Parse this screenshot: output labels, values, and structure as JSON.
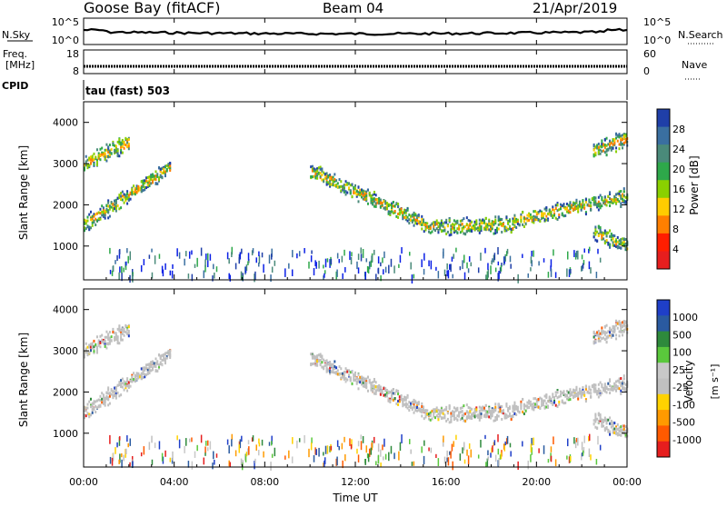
{
  "header": {
    "station": "Goose Bay (fitACF)",
    "beam": "Beam 04",
    "date": "21/Apr/2019"
  },
  "noise_panel": {
    "left_label": "N.Sky",
    "right_label": "N.Search",
    "left_ticks": [
      "10^5",
      "10^0"
    ],
    "right_ticks": [
      "10^5",
      "10^0"
    ]
  },
  "freq_panel": {
    "left_label_line1": "Freq.",
    "left_label_line2": "[MHz]",
    "right_label": "Nave",
    "left_ticks": [
      "18",
      "8"
    ],
    "right_ticks": [
      "60",
      "0"
    ]
  },
  "cpid_panel": {
    "label": "CPID",
    "value": "tau (fast) 503"
  },
  "colors": {
    "power": [
      "#0a1fe6",
      "#1f3fa8",
      "#3a6fa0",
      "#4a8a7a",
      "#2ea84a",
      "#8ad000",
      "#ffcc00",
      "#ff7f00",
      "#ff1e00",
      "#e61e1e"
    ],
    "velocity": [
      "#e61e1e",
      "#ff5a00",
      "#ff9a00",
      "#ffd200",
      "#c0c0c0",
      "#c8c8c8",
      "#5ac83c",
      "#2e8a3c",
      "#2a5aa0",
      "#1f3fc8"
    ]
  },
  "chart_data": [
    {
      "type": "heatmap",
      "title": "Power",
      "xlabel": "Time UT",
      "ylabel": "Slant Range [km]",
      "colorbar_label": "Power [dB]",
      "xlim_hours": [
        0,
        24
      ],
      "ylim_km": [
        180,
        4500
      ],
      "x_ticks": [
        "00:00",
        "04:00",
        "08:00",
        "12:00",
        "16:00",
        "20:00",
        "00:00"
      ],
      "y_ticks": [
        1000,
        2000,
        3000,
        4000
      ],
      "colorbar_ticks": [
        "4",
        "8",
        "12",
        "16",
        "20",
        "24",
        "28"
      ],
      "echo_bands": [
        {
          "name": "evening band",
          "hours": [
            0.0,
            3.8
          ],
          "range_start_km": 1500,
          "range_end_km": 2900
        },
        {
          "name": "early high band",
          "hours": [
            0.0,
            2.0
          ],
          "range_start_km": 3000,
          "range_end_km": 3500
        },
        {
          "name": "dawn curve",
          "hours": [
            10.0,
            15.0
          ],
          "range_start_km": 2800,
          "range_end_km": 1550
        },
        {
          "name": "morning flat",
          "hours": [
            15.0,
            19.0
          ],
          "range_start_km": 1450,
          "range_end_km": 1500
        },
        {
          "name": "afternoon rise",
          "hours": [
            19.0,
            24.0
          ],
          "range_start_km": 1600,
          "range_end_km": 2200
        },
        {
          "name": "late high band",
          "hours": [
            22.5,
            24.0
          ],
          "range_start_km": 3300,
          "range_end_km": 3600
        },
        {
          "name": "late low band",
          "hours": [
            22.5,
            24.0
          ],
          "range_start_km": 1300,
          "range_end_km": 1000
        }
      ]
    },
    {
      "type": "heatmap",
      "title": "Velocity",
      "xlabel": "Time UT",
      "ylabel": "Slant Range [km]",
      "colorbar_label": "Velocity [m s^-1]",
      "xlim_hours": [
        0,
        24
      ],
      "ylim_km": [
        180,
        4500
      ],
      "x_ticks": [
        "00:00",
        "04:00",
        "08:00",
        "12:00",
        "16:00",
        "20:00",
        "00:00"
      ],
      "y_ticks": [
        1000,
        2000,
        3000,
        4000
      ],
      "colorbar_ticks": [
        "-1000",
        "-500",
        "-100",
        "-25",
        "25",
        "100",
        "500",
        "1000"
      ]
    }
  ],
  "axis": {
    "xlabel": "Time UT",
    "x_ticks": [
      "00:00",
      "04:00",
      "08:00",
      "12:00",
      "16:00",
      "20:00",
      "00:00"
    ],
    "ylabel": "Slant Range [km]",
    "y_ticks": [
      "1000",
      "2000",
      "3000",
      "4000"
    ],
    "power_label": "Power [dB]",
    "velocity_label": "Velocity",
    "velocity_units": "[m s⁻¹]"
  }
}
